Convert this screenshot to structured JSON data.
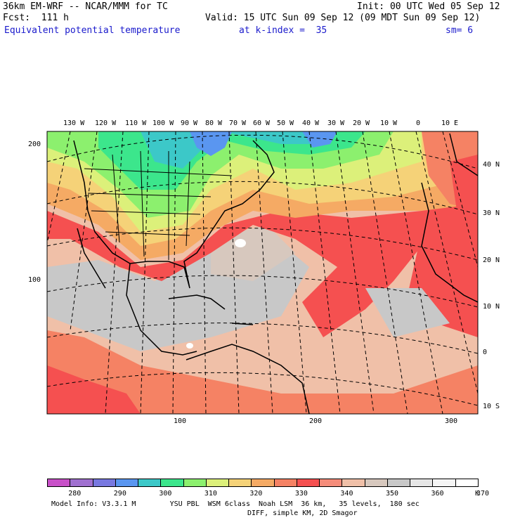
{
  "header": {
    "model": "36km EM-WRF -- NCAR/MMM for TC",
    "init": "Init: 00 UTC Wed 05 Sep 12",
    "fcst": "Fcst:  111 h",
    "valid": "Valid: 15 UTC Sun 09 Sep 12 (09 MDT Sun 09 Sep 12)",
    "field": "Equivalent potential temperature",
    "level": "at k-index =  35",
    "smooth": "sm= 6"
  },
  "map": {
    "lon_labels": [
      "130 W",
      "120 W",
      "110 W",
      "100 W",
      "90 W",
      "80 W",
      "70 W",
      "60 W",
      "50 W",
      "40 W",
      "30 W",
      "20 W",
      "10 W",
      "0",
      "10 E"
    ],
    "lat_labels": [
      "40 N",
      "30 N",
      "20 N",
      "10 N",
      "0",
      "10 S"
    ],
    "grid_y_labels": [
      "200",
      "100"
    ],
    "grid_x_labels": [
      "100",
      "200",
      "300"
    ]
  },
  "colorbar": {
    "colors": [
      "#c850c8",
      "#a070d0",
      "#7878e0",
      "#5a96f0",
      "#3cc8c8",
      "#3ce68c",
      "#8cf06e",
      "#dcf07a",
      "#f5d278",
      "#f5aa64",
      "#f58264",
      "#f55050",
      "#f58c7a",
      "#f0c0a8",
      "#d7c8be",
      "#c8c8c8",
      "#e6e6e6",
      "#f5f5f5",
      "#ffffff"
    ],
    "labels": [
      "280",
      "290",
      "300",
      "310",
      "320",
      "330",
      "340",
      "350",
      "360",
      "370"
    ],
    "unit": "K"
  },
  "footer": {
    "line1": "Model Info: V3.3.1 M        YSU PBL  WSM 6class  Noah LSM  36 km,   35 levels,  180 sec",
    "line2": "DIFF, simple KM, 2D Smagor"
  }
}
